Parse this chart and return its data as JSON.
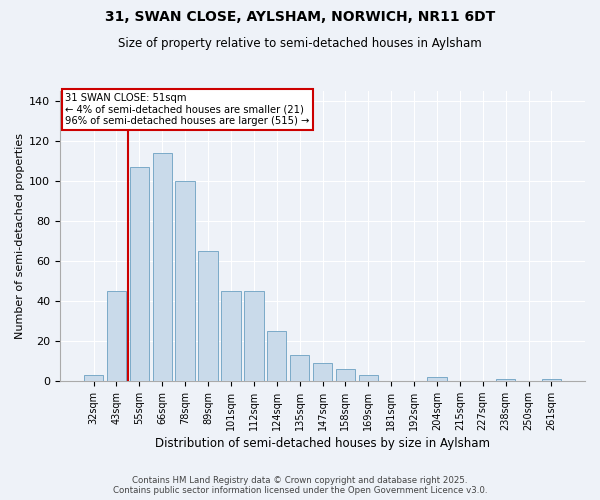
{
  "title1": "31, SWAN CLOSE, AYLSHAM, NORWICH, NR11 6DT",
  "title2": "Size of property relative to semi-detached houses in Aylsham",
  "xlabel": "Distribution of semi-detached houses by size in Aylsham",
  "ylabel": "Number of semi-detached properties",
  "bar_color": "#c9daea",
  "bar_edge_color": "#7aaac8",
  "annotation_box_color": "#cc0000",
  "background_color": "#eef2f8",
  "categories": [
    "32sqm",
    "43sqm",
    "55sqm",
    "66sqm",
    "78sqm",
    "89sqm",
    "101sqm",
    "112sqm",
    "124sqm",
    "135sqm",
    "147sqm",
    "158sqm",
    "169sqm",
    "181sqm",
    "192sqm",
    "204sqm",
    "215sqm",
    "227sqm",
    "238sqm",
    "250sqm",
    "261sqm"
  ],
  "values": [
    3,
    45,
    107,
    114,
    100,
    65,
    45,
    45,
    25,
    13,
    9,
    6,
    3,
    0,
    0,
    2,
    0,
    0,
    1,
    0,
    1
  ],
  "property_line_x": 1.5,
  "annotation_title": "31 SWAN CLOSE: 51sqm",
  "annotation_line1": "← 4% of semi-detached houses are smaller (21)",
  "annotation_line2": "96% of semi-detached houses are larger (515) →",
  "ylim": [
    0,
    145
  ],
  "yticks": [
    0,
    20,
    40,
    60,
    80,
    100,
    120,
    140
  ],
  "footer1": "Contains HM Land Registry data © Crown copyright and database right 2025.",
  "footer2": "Contains public sector information licensed under the Open Government Licence v3.0."
}
